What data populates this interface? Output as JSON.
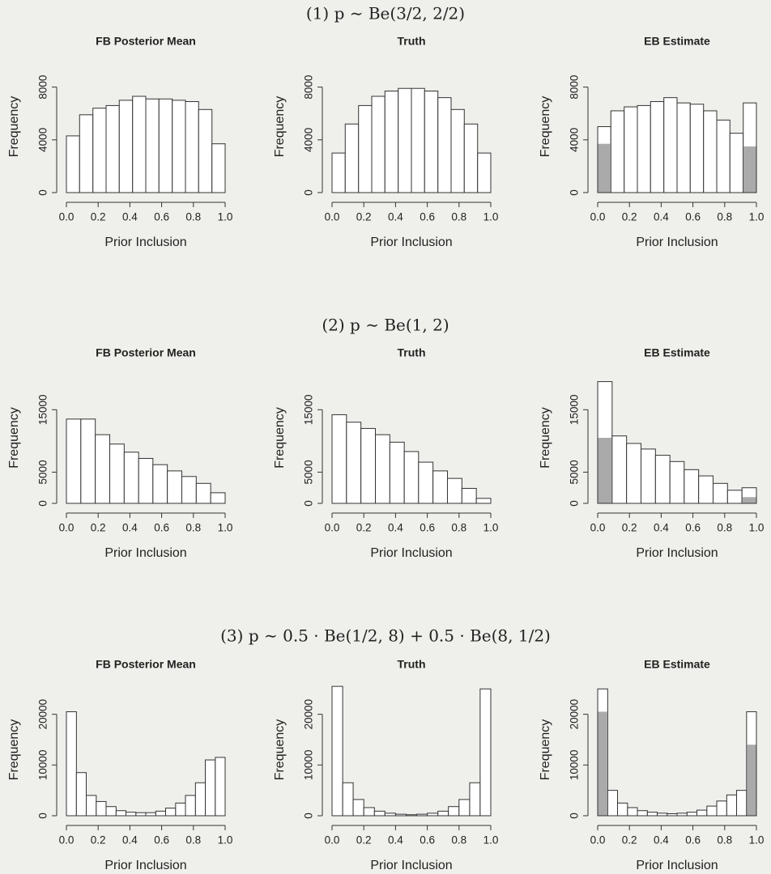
{
  "row_titles": [
    "(1) p ∼ Be(3/2, 2/2)",
    "(2) p ∼ Be(1, 2)",
    "(3) p ∼ 0.5 · Be(1/2, 8) + 0.5 · Be(8, 1/2)"
  ],
  "chart_data": [
    {
      "type": "histogram",
      "title": "FB Posterior Mean",
      "xlabel": "Prior Inclusion",
      "ylabel": "Frequency",
      "color": "#ffffff",
      "highlight_color": "#aaaaaa",
      "bins": [
        0,
        0.083,
        0.167,
        0.25,
        0.333,
        0.417,
        0.5,
        0.583,
        0.667,
        0.75,
        0.833,
        0.917,
        1
      ],
      "counts": [
        4300,
        5900,
        6400,
        6600,
        7000,
        7300,
        7100,
        7100,
        7000,
        6900,
        6300,
        3700
      ],
      "xlim": [
        0,
        1
      ],
      "ylim": [
        0,
        10000
      ],
      "xticks": [
        {
          "value": 0,
          "label": "0.0"
        },
        {
          "value": 0.2,
          "label": "0.2"
        },
        {
          "value": 0.4,
          "label": "0.4"
        },
        {
          "value": 0.6,
          "label": "0.6"
        },
        {
          "value": 0.8,
          "label": "0.8"
        },
        {
          "value": 1,
          "label": "1.0"
        }
      ],
      "yticks": [
        0,
        4000,
        8000
      ]
    },
    {
      "type": "histogram",
      "title": "Truth",
      "xlabel": "Prior Inclusion",
      "ylabel": "Frequency",
      "color": "#ffffff",
      "highlight_color": "#aaaaaa",
      "bins": [
        0,
        0.083,
        0.167,
        0.25,
        0.333,
        0.417,
        0.5,
        0.583,
        0.667,
        0.75,
        0.833,
        0.917,
        1
      ],
      "counts": [
        3000,
        5200,
        6600,
        7300,
        7700,
        7900,
        7900,
        7700,
        7200,
        6300,
        5200,
        3000
      ],
      "xlim": [
        0,
        1
      ],
      "ylim": [
        0,
        10000
      ],
      "xticks": [
        {
          "value": 0,
          "label": "0.0"
        },
        {
          "value": 0.2,
          "label": "0.2"
        },
        {
          "value": 0.4,
          "label": "0.4"
        },
        {
          "value": 0.6,
          "label": "0.6"
        },
        {
          "value": 0.8,
          "label": "0.8"
        },
        {
          "value": 1,
          "label": "1.0"
        }
      ],
      "yticks": [
        0,
        4000,
        8000
      ]
    },
    {
      "type": "histogram",
      "title": "EB Estimate",
      "xlabel": "Prior Inclusion",
      "ylabel": "Frequency",
      "color": "#ffffff",
      "highlight_color": "#aaaaaa",
      "bins": [
        0,
        0.083,
        0.167,
        0.25,
        0.333,
        0.417,
        0.5,
        0.583,
        0.667,
        0.75,
        0.833,
        0.917,
        1
      ],
      "counts": [
        5000,
        6200,
        6500,
        6600,
        6900,
        7200,
        6800,
        6700,
        6200,
        5500,
        4500,
        6800
      ],
      "highlight_counts": [
        3700,
        null,
        null,
        null,
        null,
        null,
        null,
        null,
        null,
        null,
        null,
        3500
      ],
      "xlim": [
        0,
        1
      ],
      "ylim": [
        0,
        10000
      ],
      "xticks": [
        {
          "value": 0,
          "label": "0.0"
        },
        {
          "value": 0.2,
          "label": "0.2"
        },
        {
          "value": 0.4,
          "label": "0.4"
        },
        {
          "value": 0.6,
          "label": "0.6"
        },
        {
          "value": 0.8,
          "label": "0.8"
        },
        {
          "value": 1,
          "label": "1.0"
        }
      ],
      "yticks": [
        0,
        4000,
        8000
      ]
    },
    {
      "type": "histogram",
      "title": "FB Posterior Mean",
      "xlabel": "Prior Inclusion",
      "ylabel": "Frequency",
      "color": "#ffffff",
      "highlight_color": "#aaaaaa",
      "bins": [
        0,
        0.091,
        0.182,
        0.273,
        0.364,
        0.455,
        0.545,
        0.636,
        0.727,
        0.818,
        0.909,
        1
      ],
      "counts": [
        13500,
        13500,
        11000,
        9500,
        8200,
        7200,
        6200,
        5200,
        4300,
        3200,
        1700
      ],
      "xlim": [
        0,
        1
      ],
      "ylim": [
        0,
        21000
      ],
      "xticks": [
        {
          "value": 0,
          "label": "0.0"
        },
        {
          "value": 0.2,
          "label": "0.2"
        },
        {
          "value": 0.4,
          "label": "0.4"
        },
        {
          "value": 0.6,
          "label": "0.6"
        },
        {
          "value": 0.8,
          "label": "0.8"
        },
        {
          "value": 1,
          "label": "1.0"
        }
      ],
      "yticks": [
        0,
        5000,
        15000
      ]
    },
    {
      "type": "histogram",
      "title": "Truth",
      "xlabel": "Prior Inclusion",
      "ylabel": "Frequency",
      "color": "#ffffff",
      "highlight_color": "#aaaaaa",
      "bins": [
        0,
        0.091,
        0.182,
        0.273,
        0.364,
        0.455,
        0.545,
        0.636,
        0.727,
        0.818,
        0.909,
        1
      ],
      "counts": [
        14200,
        13000,
        12000,
        11000,
        9800,
        8300,
        6600,
        5200,
        4000,
        2400,
        800
      ],
      "xlim": [
        0,
        1
      ],
      "ylim": [
        0,
        21000
      ],
      "xticks": [
        {
          "value": 0,
          "label": "0.0"
        },
        {
          "value": 0.2,
          "label": "0.2"
        },
        {
          "value": 0.4,
          "label": "0.4"
        },
        {
          "value": 0.6,
          "label": "0.6"
        },
        {
          "value": 0.8,
          "label": "0.8"
        },
        {
          "value": 1,
          "label": "1.0"
        }
      ],
      "yticks": [
        0,
        5000,
        15000
      ]
    },
    {
      "type": "histogram",
      "title": "EB Estimate",
      "xlabel": "Prior Inclusion",
      "ylabel": "Frequency",
      "color": "#ffffff",
      "highlight_color": "#aaaaaa",
      "bins": [
        0,
        0.091,
        0.182,
        0.273,
        0.364,
        0.455,
        0.545,
        0.636,
        0.727,
        0.818,
        0.909,
        1
      ],
      "counts": [
        19500,
        10800,
        9600,
        8700,
        7700,
        6700,
        5400,
        4400,
        3200,
        2100,
        2500
      ],
      "highlight_counts": [
        10500,
        null,
        null,
        null,
        null,
        null,
        null,
        null,
        null,
        null,
        1000
      ],
      "xlim": [
        0,
        1
      ],
      "ylim": [
        0,
        21000
      ],
      "xticks": [
        {
          "value": 0,
          "label": "0.0"
        },
        {
          "value": 0.2,
          "label": "0.2"
        },
        {
          "value": 0.4,
          "label": "0.4"
        },
        {
          "value": 0.6,
          "label": "0.6"
        },
        {
          "value": 0.8,
          "label": "0.8"
        },
        {
          "value": 1,
          "label": "1.0"
        }
      ],
      "yticks": [
        0,
        5000,
        15000
      ]
    },
    {
      "type": "histogram",
      "title": "FB Posterior Mean",
      "xlabel": "Prior Inclusion",
      "ylabel": "Frequency",
      "color": "#ffffff",
      "highlight_color": "#aaaaaa",
      "bins": [
        0,
        0.063,
        0.125,
        0.188,
        0.25,
        0.313,
        0.375,
        0.438,
        0.5,
        0.563,
        0.625,
        0.688,
        0.75,
        0.813,
        0.875,
        0.938,
        1
      ],
      "counts": [
        20500,
        8500,
        4000,
        2800,
        1800,
        1000,
        700,
        600,
        600,
        900,
        1500,
        2500,
        4000,
        6500,
        11000,
        11500
      ],
      "xlim": [
        0,
        1
      ],
      "ylim": [
        0,
        26000
      ],
      "xticks": [
        {
          "value": 0,
          "label": "0.0"
        },
        {
          "value": 0.2,
          "label": "0.2"
        },
        {
          "value": 0.4,
          "label": "0.4"
        },
        {
          "value": 0.6,
          "label": "0.6"
        },
        {
          "value": 0.8,
          "label": "0.8"
        },
        {
          "value": 1,
          "label": "1.0"
        }
      ],
      "yticks": [
        0,
        10000,
        20000
      ]
    },
    {
      "type": "histogram",
      "title": "Truth",
      "xlabel": "Prior Inclusion",
      "ylabel": "Frequency",
      "color": "#ffffff",
      "highlight_color": "#aaaaaa",
      "bins": [
        0,
        0.067,
        0.133,
        0.2,
        0.267,
        0.333,
        0.4,
        0.467,
        0.533,
        0.6,
        0.667,
        0.733,
        0.8,
        0.867,
        0.933,
        1
      ],
      "counts": [
        25500,
        6500,
        3200,
        1600,
        900,
        500,
        300,
        200,
        300,
        500,
        900,
        1800,
        3200,
        6500,
        25000
      ],
      "xlim": [
        0,
        1
      ],
      "ylim": [
        0,
        26000
      ],
      "xticks": [
        {
          "value": 0,
          "label": "0.0"
        },
        {
          "value": 0.2,
          "label": "0.2"
        },
        {
          "value": 0.4,
          "label": "0.4"
        },
        {
          "value": 0.6,
          "label": "0.6"
        },
        {
          "value": 0.8,
          "label": "0.8"
        },
        {
          "value": 1,
          "label": "1.0"
        }
      ],
      "yticks": [
        0,
        10000,
        20000
      ]
    },
    {
      "type": "histogram",
      "title": "EB Estimate",
      "xlabel": "Prior Inclusion",
      "ylabel": "Frequency",
      "color": "#ffffff",
      "highlight_color": "#aaaaaa",
      "bins": [
        0,
        0.063,
        0.125,
        0.188,
        0.25,
        0.313,
        0.375,
        0.438,
        0.5,
        0.563,
        0.625,
        0.688,
        0.75,
        0.813,
        0.875,
        0.938,
        1
      ],
      "counts": [
        25000,
        5000,
        2500,
        1600,
        1000,
        700,
        500,
        400,
        500,
        700,
        1100,
        1900,
        2900,
        4100,
        5000,
        20500
      ],
      "highlight_counts": [
        20500,
        null,
        null,
        null,
        null,
        null,
        null,
        null,
        null,
        null,
        null,
        null,
        null,
        null,
        null,
        14000
      ],
      "xlim": [
        0,
        1
      ],
      "ylim": [
        0,
        26000
      ],
      "xticks": [
        {
          "value": 0,
          "label": "0.0"
        },
        {
          "value": 0.2,
          "label": "0.2"
        },
        {
          "value": 0.4,
          "label": "0.4"
        },
        {
          "value": 0.6,
          "label": "0.6"
        },
        {
          "value": 0.8,
          "label": "0.8"
        },
        {
          "value": 1,
          "label": "1.0"
        }
      ],
      "yticks": [
        0,
        10000,
        20000
      ]
    }
  ]
}
